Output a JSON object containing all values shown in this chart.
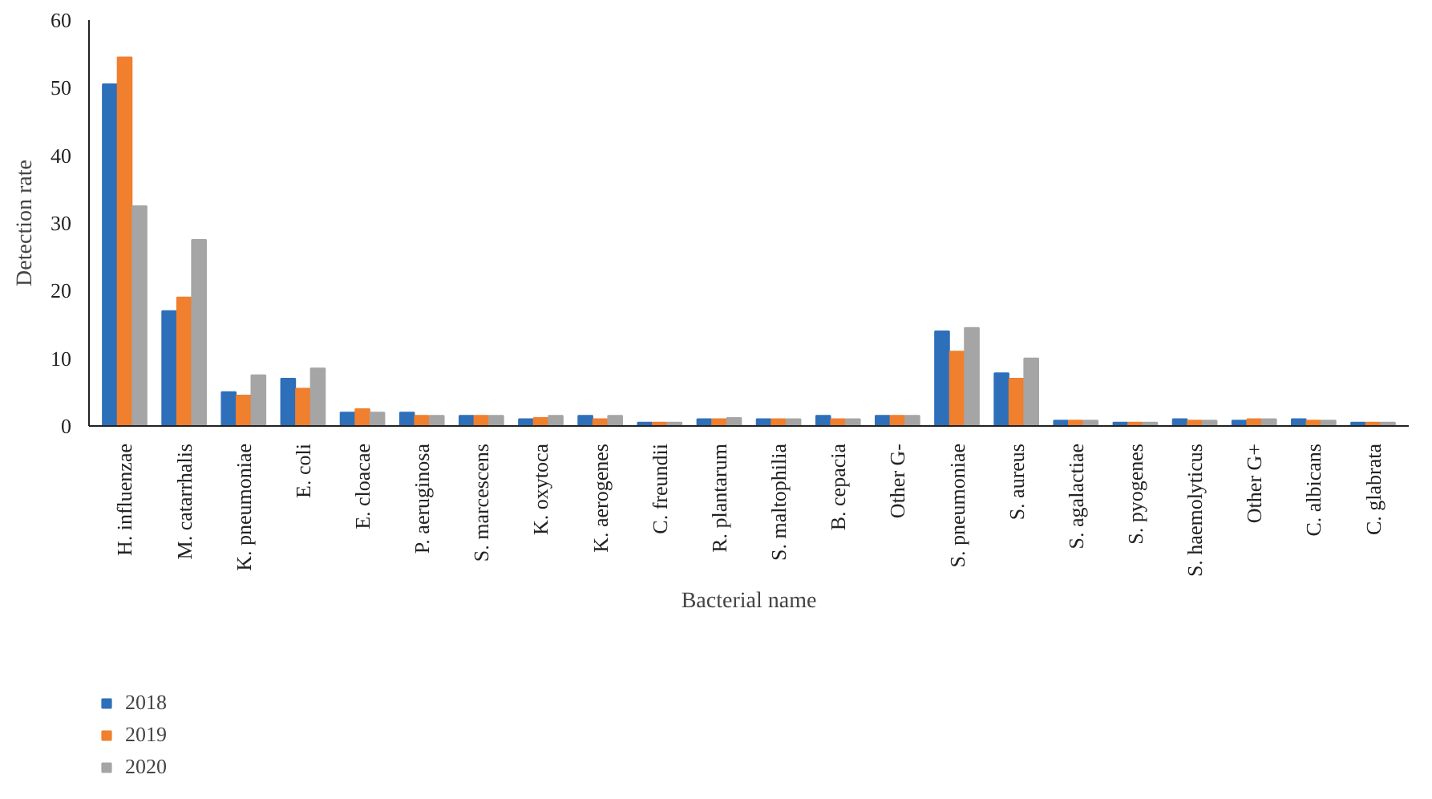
{
  "chart_data": {
    "type": "bar",
    "xlabel": "Bacterial name",
    "ylabel": "Detection rate",
    "categories": [
      "H. influenzae",
      "M. catarrhalis",
      "K. pneumoniae",
      "E. coli",
      "E. cloacae",
      "P. aeruginosa",
      "S. marcescens",
      "K. oxytoca",
      "K. aerogenes",
      "C. freundii",
      "R. plantarum",
      "S. maltophilia",
      "B. cepacia",
      "Other G-",
      "S. pneumoniae",
      "S. aureus",
      "S. agalactiae",
      "S. pyogenes",
      "S. haemolyticus",
      "Other G+",
      "C. albicans",
      "C. glabrata"
    ],
    "series": [
      {
        "name": "2018",
        "color": "#2e6fba",
        "values": [
          50.5,
          17,
          5,
          7,
          2,
          2,
          1.5,
          1,
          1.5,
          0.5,
          1,
          1,
          1.5,
          1.5,
          14,
          7.8,
          0.8,
          0.5,
          1,
          0.8,
          1,
          0.5
        ]
      },
      {
        "name": "2019",
        "color": "#f07f2e",
        "values": [
          54.5,
          19,
          4.5,
          5.5,
          2.5,
          1.5,
          1.5,
          1.2,
          1,
          0.5,
          1,
          1,
          1,
          1.5,
          11,
          7,
          0.8,
          0.5,
          0.8,
          1,
          0.8,
          0.5
        ]
      },
      {
        "name": "2020",
        "color": "#a5a5a5",
        "values": [
          32.5,
          27.5,
          7.5,
          8.5,
          2,
          1.5,
          1.5,
          1.5,
          1.5,
          0.5,
          1.2,
          1,
          1,
          1.5,
          14.5,
          10,
          0.8,
          0.5,
          0.8,
          1,
          0.8,
          0.5
        ]
      }
    ],
    "ylim": [
      0,
      60
    ],
    "yticks": [
      0,
      10,
      20,
      30,
      40,
      50,
      60
    ],
    "grid": false,
    "legend": "bottom left"
  }
}
